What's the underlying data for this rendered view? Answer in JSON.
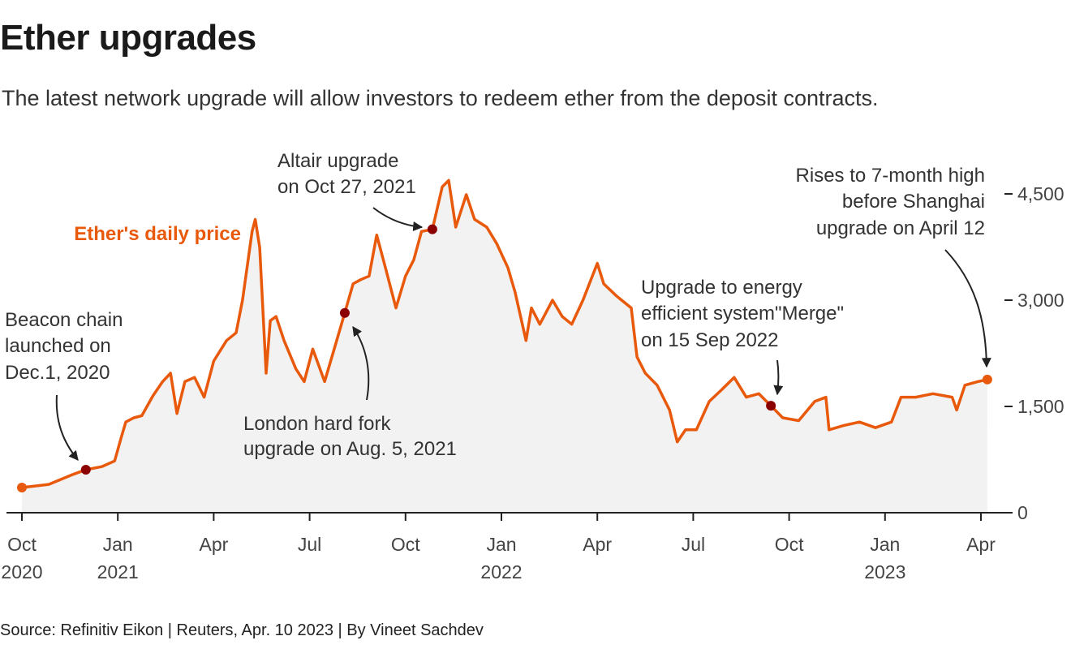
{
  "header": {
    "title": "Ether upgrades",
    "subtitle": "The latest network upgrade will allow investors to redeem ether from the deposit contracts."
  },
  "footer": {
    "source": "Source: Refinitiv Eikon | Reuters, Apr. 10 2023 | By Vineet Sachdev"
  },
  "chart_data": {
    "type": "area",
    "title": "Ether upgrades",
    "series_label": "Ether's daily price",
    "x_unit": "months since Oct 1, 2020",
    "xlim": [
      0,
      30.6
    ],
    "ylim": [
      0,
      4700
    ],
    "yticks": [
      {
        "value": 0,
        "label": "0"
      },
      {
        "value": 1500,
        "label": "1,500"
      },
      {
        "value": 3000,
        "label": "3,000"
      },
      {
        "value": 4500,
        "label": "4,500"
      }
    ],
    "xticks": [
      {
        "value": 0,
        "label": "Oct",
        "year": "2020"
      },
      {
        "value": 3,
        "label": "Jan",
        "year": "2021"
      },
      {
        "value": 6,
        "label": "Apr",
        "year": ""
      },
      {
        "value": 9,
        "label": "Jul",
        "year": ""
      },
      {
        "value": 12,
        "label": "Oct",
        "year": ""
      },
      {
        "value": 15,
        "label": "Jan",
        "year": "2022"
      },
      {
        "value": 18,
        "label": "Apr",
        "year": ""
      },
      {
        "value": 21,
        "label": "Jul",
        "year": ""
      },
      {
        "value": 24,
        "label": "Oct",
        "year": ""
      },
      {
        "value": 27,
        "label": "Jan",
        "year": "2023"
      },
      {
        "value": 30,
        "label": "Apr",
        "year": ""
      }
    ],
    "points": [
      [
        0,
        355
      ],
      [
        0.84,
        400
      ],
      [
        1.6,
        540
      ],
      [
        2.0,
        607
      ],
      [
        2.5,
        650
      ],
      [
        2.9,
        730
      ],
      [
        3.1,
        1050
      ],
      [
        3.25,
        1280
      ],
      [
        3.5,
        1340
      ],
      [
        3.75,
        1370
      ],
      [
        4.1,
        1650
      ],
      [
        4.4,
        1850
      ],
      [
        4.65,
        1970
      ],
      [
        4.85,
        1400
      ],
      [
        5.1,
        1850
      ],
      [
        5.4,
        1910
      ],
      [
        5.7,
        1630
      ],
      [
        6.0,
        2140
      ],
      [
        6.4,
        2430
      ],
      [
        6.7,
        2540
      ],
      [
        6.9,
        3000
      ],
      [
        7.2,
        3970
      ],
      [
        7.3,
        4140
      ],
      [
        7.44,
        3740
      ],
      [
        7.64,
        1970
      ],
      [
        7.77,
        2710
      ],
      [
        7.95,
        2770
      ],
      [
        8.2,
        2430
      ],
      [
        8.57,
        2030
      ],
      [
        8.83,
        1850
      ],
      [
        9.1,
        2310
      ],
      [
        9.47,
        1850
      ],
      [
        9.77,
        2310
      ],
      [
        10.1,
        2820
      ],
      [
        10.36,
        3230
      ],
      [
        10.6,
        3290
      ],
      [
        10.86,
        3340
      ],
      [
        11.1,
        3920
      ],
      [
        11.37,
        3460
      ],
      [
        11.7,
        2890
      ],
      [
        12.0,
        3340
      ],
      [
        12.26,
        3570
      ],
      [
        12.5,
        3970
      ],
      [
        12.84,
        4000
      ],
      [
        13.15,
        4600
      ],
      [
        13.35,
        4690
      ],
      [
        13.57,
        4030
      ],
      [
        13.9,
        4490
      ],
      [
        14.16,
        4140
      ],
      [
        14.54,
        4030
      ],
      [
        14.85,
        3800
      ],
      [
        15.2,
        3460
      ],
      [
        15.43,
        3110
      ],
      [
        15.77,
        2430
      ],
      [
        15.94,
        2890
      ],
      [
        16.2,
        2660
      ],
      [
        16.6,
        3000
      ],
      [
        16.9,
        2770
      ],
      [
        17.2,
        2660
      ],
      [
        17.55,
        3000
      ],
      [
        18.0,
        3520
      ],
      [
        18.2,
        3230
      ],
      [
        18.6,
        3060
      ],
      [
        19.06,
        2890
      ],
      [
        19.24,
        2200
      ],
      [
        19.5,
        1970
      ],
      [
        19.87,
        1800
      ],
      [
        20.26,
        1450
      ],
      [
        20.5,
        1000
      ],
      [
        20.76,
        1170
      ],
      [
        21.1,
        1170
      ],
      [
        21.5,
        1570
      ],
      [
        21.9,
        1740
      ],
      [
        22.28,
        1910
      ],
      [
        22.66,
        1630
      ],
      [
        23.05,
        1680
      ],
      [
        23.43,
        1510
      ],
      [
        23.8,
        1340
      ],
      [
        24.3,
        1300
      ],
      [
        24.8,
        1570
      ],
      [
        25.15,
        1630
      ],
      [
        25.25,
        1170
      ],
      [
        25.7,
        1230
      ],
      [
        26.2,
        1280
      ],
      [
        26.7,
        1200
      ],
      [
        27.2,
        1280
      ],
      [
        27.5,
        1630
      ],
      [
        27.96,
        1630
      ],
      [
        28.5,
        1680
      ],
      [
        29.1,
        1630
      ],
      [
        29.24,
        1450
      ],
      [
        29.5,
        1800
      ],
      [
        29.9,
        1850
      ],
      [
        30.2,
        1880
      ]
    ],
    "markers": [
      {
        "x": 0,
        "y": 355,
        "kind": "start"
      },
      {
        "x": 2.0,
        "y": 607,
        "kind": "event"
      },
      {
        "x": 10.1,
        "y": 2820,
        "kind": "event"
      },
      {
        "x": 12.84,
        "y": 4000,
        "kind": "event"
      },
      {
        "x": 23.43,
        "y": 1510,
        "kind": "event"
      },
      {
        "x": 30.2,
        "y": 1880,
        "kind": "end"
      }
    ],
    "annotations": [
      {
        "name": "beacon-chain",
        "lines": [
          "Beacon chain",
          "launched on",
          "Dec.1, 2020"
        ]
      },
      {
        "name": "london-fork",
        "lines": [
          "London hard fork",
          "upgrade on Aug. 5, 2021"
        ]
      },
      {
        "name": "altair",
        "lines": [
          "Altair upgrade",
          "on Oct 27, 2021"
        ]
      },
      {
        "name": "merge",
        "lines": [
          "Upgrade to energy",
          "efficient system\"Merge\"",
          "on 15 Sep 2022"
        ]
      },
      {
        "name": "shanghai",
        "lines": [
          "Rises to 7-month high",
          "before Shanghai",
          "upgrade on April 12"
        ]
      }
    ],
    "colors": {
      "line": "#e8590c",
      "area": "#f2f2f2",
      "event_marker": "#8b0000",
      "label": "#e8590c"
    }
  }
}
